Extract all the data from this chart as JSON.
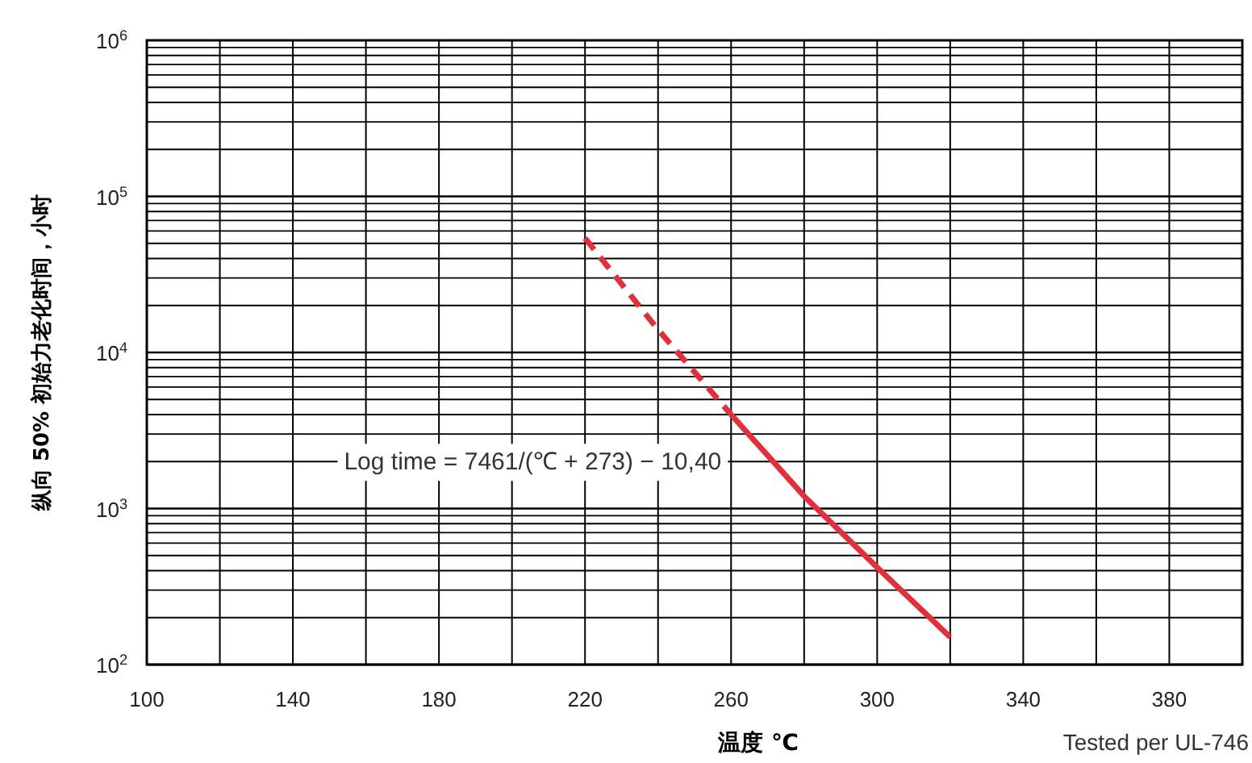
{
  "chart_data": {
    "type": "line",
    "xlabel": "温度 ℃",
    "ylabel": "纵向 50% 初始力老化时间，小时",
    "annotations": [
      "Log time = 7461/(℃ + 273) − 10,40",
      "Tested per UL-746"
    ],
    "xlim": [
      100,
      400
    ],
    "xticks": [
      100,
      140,
      180,
      220,
      260,
      300,
      340,
      380
    ],
    "ylim": [
      100,
      1000000
    ],
    "log": "y",
    "yticks": [
      {
        "value": 100,
        "label": "10$^{2}$"
      },
      {
        "value": 1000,
        "label": "10$^{3}$"
      },
      {
        "value": 10000,
        "label": "10$^{4}$"
      },
      {
        "value": 100000,
        "label": "10$^{5}$"
      },
      {
        "value": 1000000,
        "label": "10$^{6}$"
      }
    ],
    "grid": true,
    "series": [
      {
        "color": "#e0303a",
        "line_style": "dashed",
        "x": [
          220,
          240,
          260
        ],
        "values": [
          54000,
          14000,
          4000
        ]
      },
      {
        "color": "#e0303a",
        "line_style": "solid",
        "x": [
          260,
          280,
          300,
          320
        ],
        "values": [
          4000,
          1200,
          420,
          150
        ]
      }
    ]
  }
}
